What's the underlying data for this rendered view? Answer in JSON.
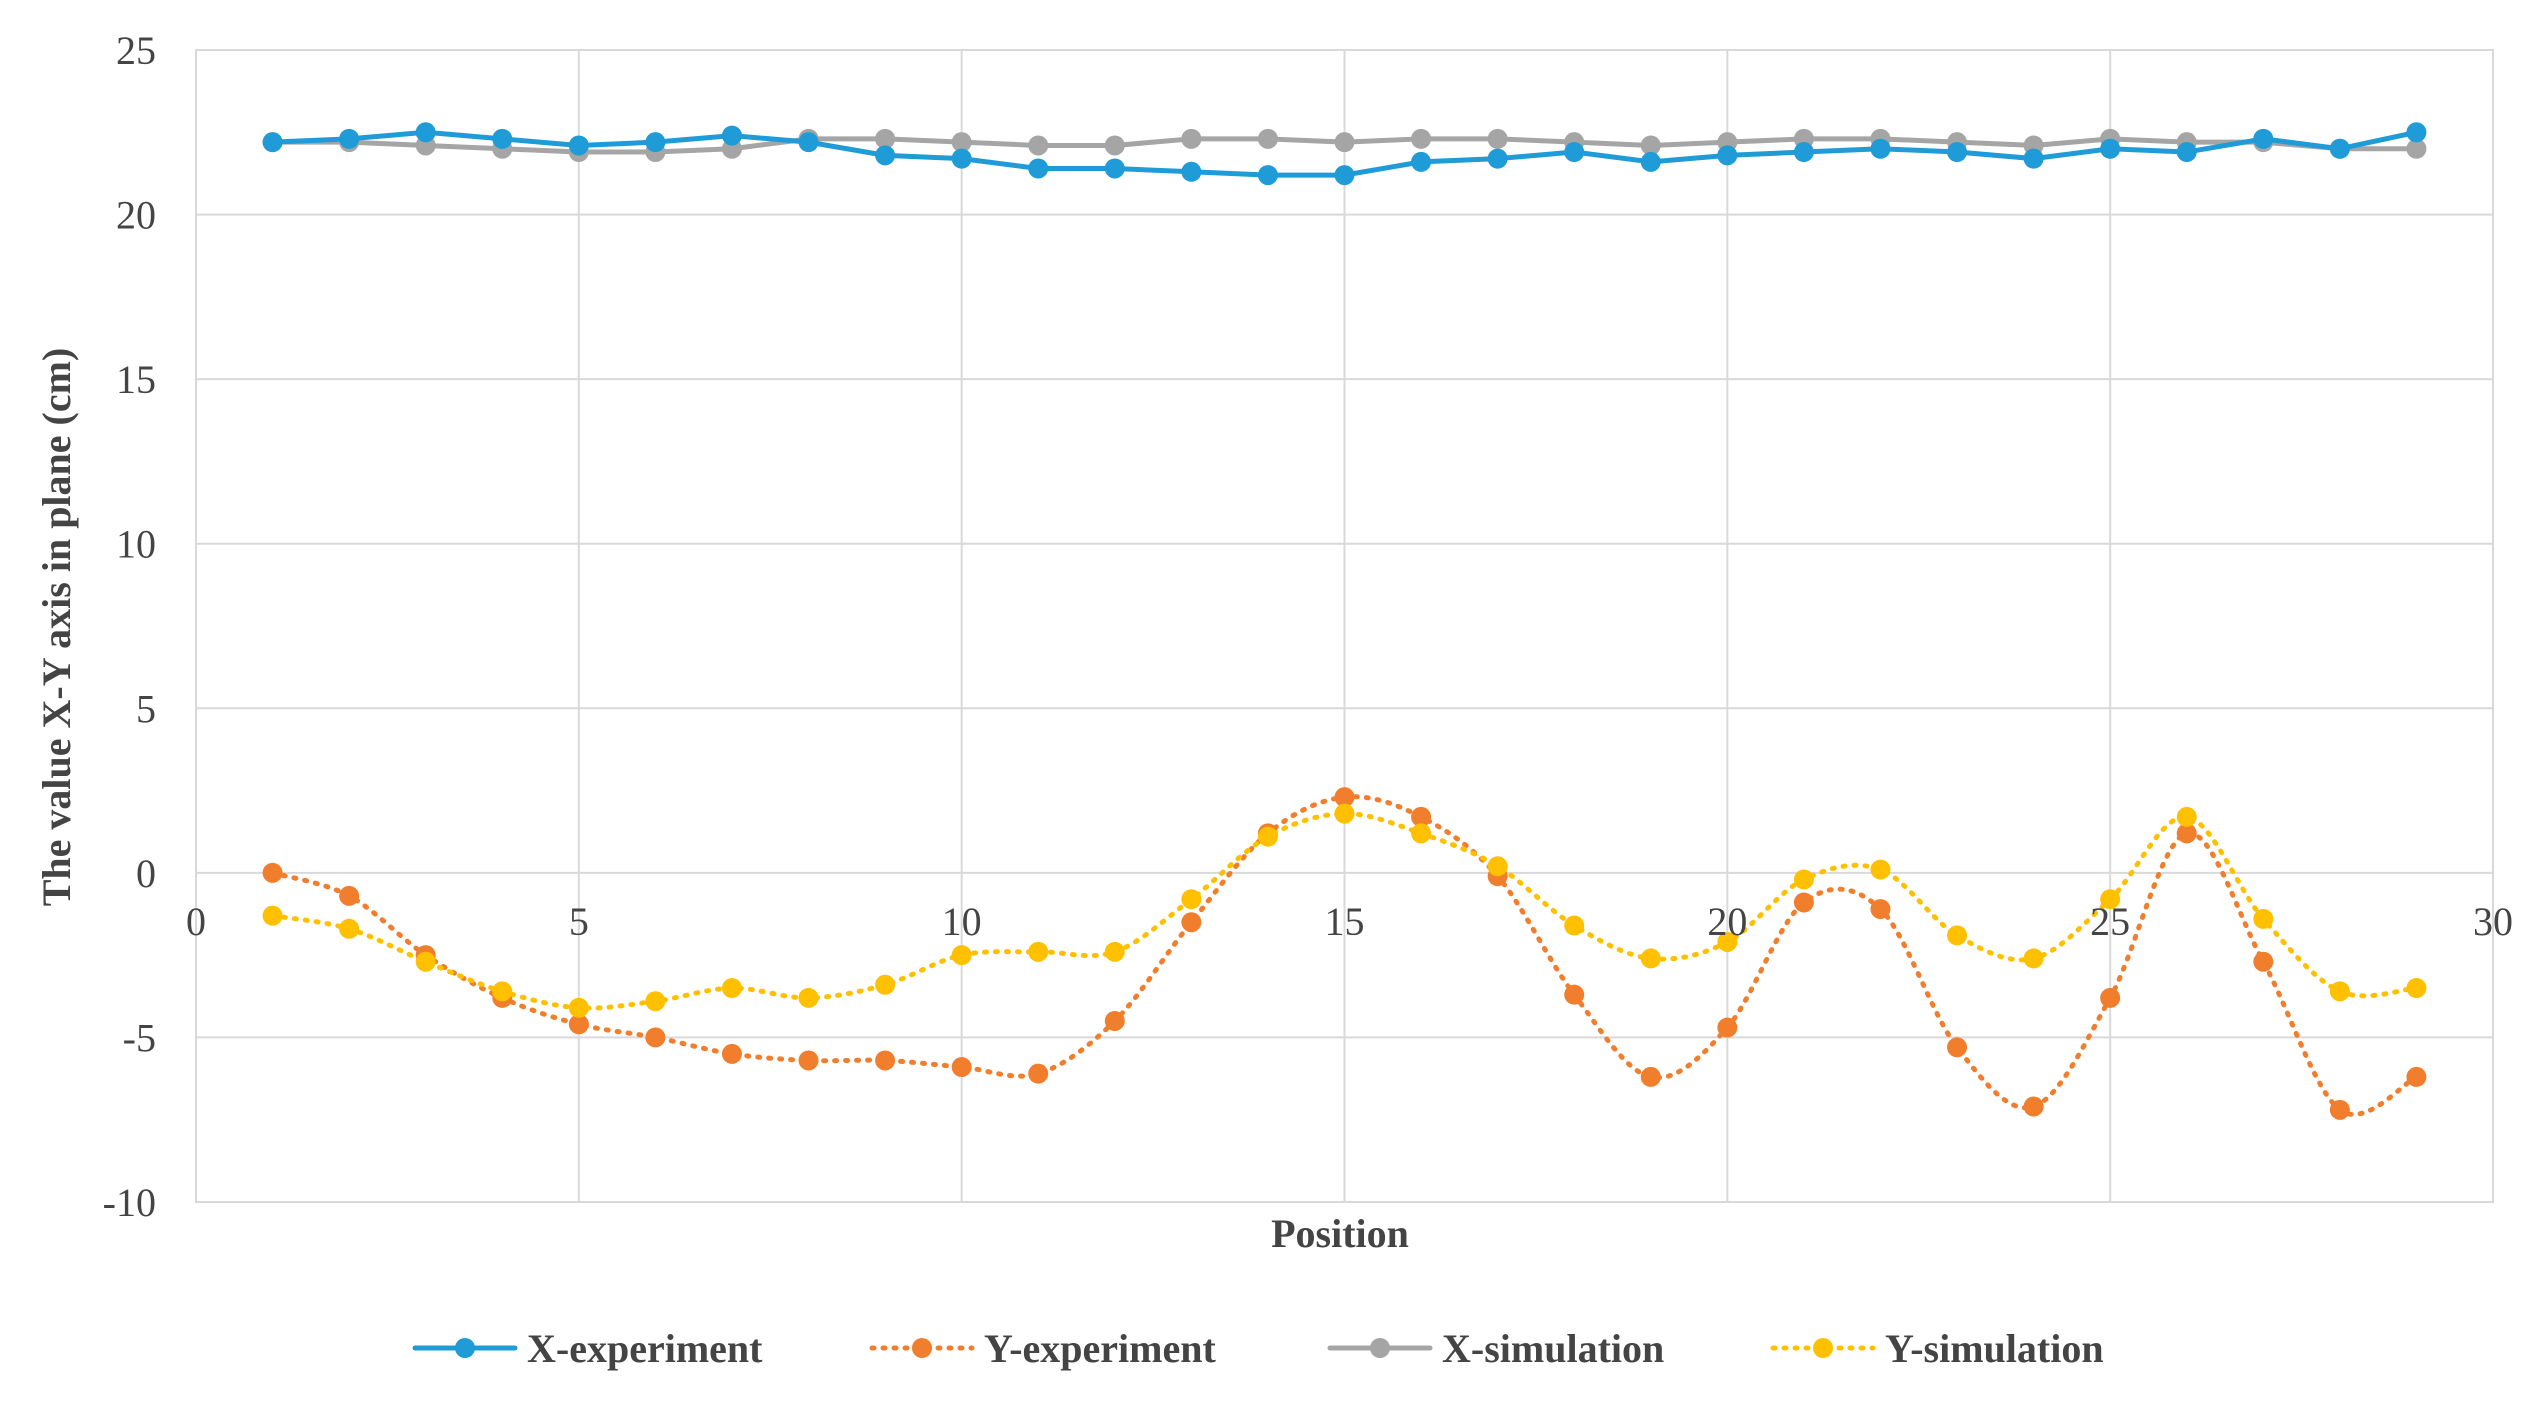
{
  "chart_data": {
    "type": "line",
    "title": "",
    "xlabel": "Position",
    "ylabel": "The value X-Y axis in plane (cm)",
    "xlim": [
      0,
      30
    ],
    "ylim": [
      -10,
      25
    ],
    "xticks": [
      "0",
      "5",
      "10",
      "15",
      "20",
      "25",
      "30"
    ],
    "yticks": [
      "-10",
      "-5",
      "0",
      "5",
      "10",
      "15",
      "20",
      "25"
    ],
    "grid": true,
    "legend_position": "bottom",
    "x": [
      1,
      2,
      3,
      4,
      5,
      6,
      7,
      8,
      9,
      10,
      11,
      12,
      13,
      14,
      15,
      16,
      17,
      18,
      19,
      20,
      21,
      22,
      23,
      24,
      25,
      26,
      27,
      28,
      29
    ],
    "series": [
      {
        "name": "X-experiment",
        "color": "#1f9bd7",
        "dash": "solid",
        "values": [
          22.2,
          22.3,
          22.5,
          22.3,
          22.1,
          22.2,
          22.4,
          22.2,
          21.8,
          21.7,
          21.4,
          21.4,
          21.3,
          21.2,
          21.2,
          21.6,
          21.7,
          21.9,
          21.6,
          21.8,
          21.9,
          22.0,
          21.9,
          21.7,
          22.0,
          21.9,
          22.3,
          22.0,
          22.5
        ]
      },
      {
        "name": "Y-experiment",
        "color": "#f07e2c",
        "dash": "dotted",
        "values": [
          0.0,
          -0.7,
          -2.5,
          -3.8,
          -4.6,
          -5.0,
          -5.5,
          -5.7,
          -5.7,
          -5.9,
          -6.1,
          -4.5,
          -1.5,
          1.2,
          2.3,
          1.7,
          -0.1,
          -3.7,
          -6.2,
          -4.7,
          -0.9,
          -1.1,
          -5.3,
          -7.1,
          -3.8,
          1.2,
          -2.7,
          -7.2,
          -6.2
        ]
      },
      {
        "name": "X-simulation",
        "color": "#a5a5a5",
        "dash": "solid",
        "values": [
          22.2,
          22.2,
          22.1,
          22.0,
          21.9,
          21.9,
          22.0,
          22.3,
          22.3,
          22.2,
          22.1,
          22.1,
          22.3,
          22.3,
          22.2,
          22.3,
          22.3,
          22.2,
          22.1,
          22.2,
          22.3,
          22.3,
          22.2,
          22.1,
          22.3,
          22.2,
          22.2,
          22.0,
          22.0
        ]
      },
      {
        "name": "Y-simulation",
        "color": "#ffc000",
        "dash": "dotted",
        "values": [
          -1.3,
          -1.7,
          -2.7,
          -3.6,
          -4.1,
          -3.9,
          -3.5,
          -3.8,
          -3.4,
          -2.5,
          -2.4,
          -2.4,
          -0.8,
          1.1,
          1.8,
          1.2,
          0.2,
          -1.6,
          -2.6,
          -2.1,
          -0.2,
          0.1,
          -1.9,
          -2.6,
          -0.8,
          1.7,
          -1.4,
          -3.6,
          -3.5
        ]
      }
    ]
  }
}
